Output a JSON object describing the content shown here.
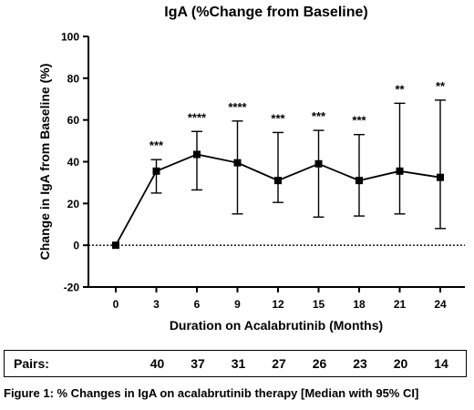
{
  "chart_data": {
    "type": "line",
    "title": "IgA (%Change from Baseline)",
    "xlabel": "Duration on Acalabrutinib (Months)",
    "ylabel": "Change in IgA from Baseline (%)",
    "x": [
      0,
      3,
      6,
      9,
      12,
      15,
      18,
      21,
      24
    ],
    "y": [
      0,
      35.5,
      43.5,
      39.5,
      31,
      39,
      31,
      35.5,
      32.5
    ],
    "ci_lower": [
      0,
      25,
      26.5,
      15,
      20.5,
      13.5,
      14,
      15,
      8
    ],
    "ci_upper": [
      0,
      41,
      54.5,
      59.5,
      54,
      55,
      53,
      68,
      69.5
    ],
    "significance": [
      "",
      "***",
      "****",
      "****",
      "***",
      "***",
      "***",
      "**",
      "**"
    ],
    "ylim": [
      -20,
      100
    ],
    "yticks": [
      -20,
      0,
      20,
      40,
      60,
      80,
      100
    ],
    "xticks": [
      0,
      3,
      6,
      9,
      12,
      15,
      18,
      21,
      24
    ],
    "reference_line": 0,
    "marker": "square",
    "color": "#000000"
  },
  "pairs": {
    "label": "Pairs:",
    "values": [
      "40",
      "37",
      "31",
      "27",
      "26",
      "23",
      "20",
      "14"
    ]
  },
  "caption": "Figure 1: % Changes in IgA on acalabrutinib therapy [Median with 95% CI]"
}
